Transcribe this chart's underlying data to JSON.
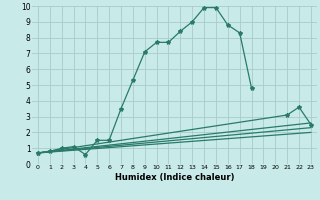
{
  "xlabel": "Humidex (Indice chaleur)",
  "bg_color": "#c8eae8",
  "grid_color": "#a8ccca",
  "line_color": "#2a7a6a",
  "xlim": [
    -0.5,
    23.5
  ],
  "ylim": [
    0,
    10
  ],
  "xticks": [
    0,
    1,
    2,
    3,
    4,
    5,
    6,
    7,
    8,
    9,
    10,
    11,
    12,
    13,
    14,
    15,
    16,
    17,
    18,
    19,
    20,
    21,
    22,
    23
  ],
  "yticks": [
    0,
    1,
    2,
    3,
    4,
    5,
    6,
    7,
    8,
    9,
    10
  ],
  "main_curve_x": [
    0,
    1,
    2,
    3,
    4,
    5,
    6,
    7,
    8,
    9,
    10,
    11,
    12,
    13,
    14,
    15,
    16,
    17,
    18
  ],
  "main_curve_y": [
    0.7,
    0.8,
    1.0,
    1.1,
    0.6,
    1.5,
    1.5,
    3.5,
    5.3,
    7.1,
    7.7,
    7.7,
    8.4,
    9.0,
    9.9,
    9.9,
    8.8,
    8.3,
    4.8
  ],
  "tail_curve_x": [
    0,
    21,
    22,
    23
  ],
  "tail_curve_y": [
    0.7,
    3.1,
    3.6,
    2.5
  ],
  "straight_lines": [
    {
      "x": [
        0,
        23
      ],
      "y": [
        0.7,
        2.6
      ]
    },
    {
      "x": [
        0,
        23
      ],
      "y": [
        0.7,
        2.3
      ]
    },
    {
      "x": [
        0,
        23
      ],
      "y": [
        0.7,
        2.0
      ]
    }
  ]
}
